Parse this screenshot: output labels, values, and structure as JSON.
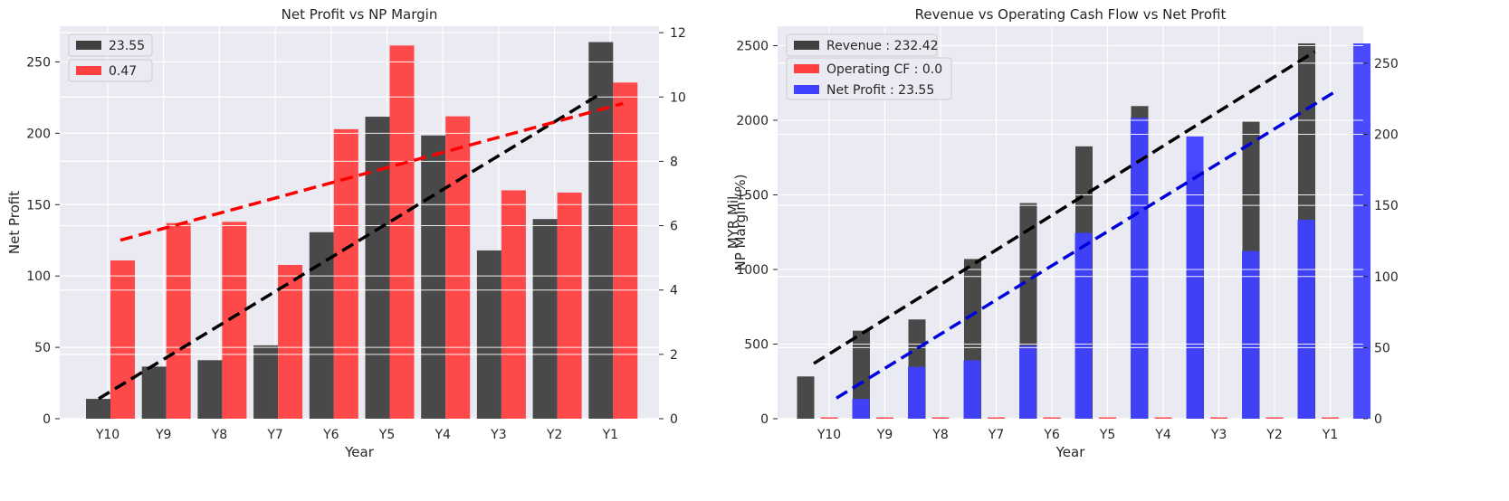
{
  "chart_data": [
    {
      "type": "bar",
      "title": "Net Profit vs NP Margin",
      "xlabel": "Year",
      "ylabel": "Net Profit",
      "y2label": "NP Margin (%)",
      "categories": [
        "Y10",
        "Y9",
        "Y8",
        "Y7",
        "Y6",
        "Y5",
        "Y4",
        "Y3",
        "Y2",
        "Y1"
      ],
      "ylim": [
        0,
        275
      ],
      "yticks": [
        0,
        50,
        100,
        150,
        200,
        250
      ],
      "y2lim": [
        0,
        12.2
      ],
      "y2ticks": [
        0,
        2,
        4,
        6,
        8,
        10,
        12
      ],
      "grid": true,
      "legend_position": "top-left",
      "series": [
        {
          "name": "23.55",
          "axis": "left",
          "color": "#404040",
          "values": [
            13.9,
            36.5,
            41.0,
            51.4,
            130.7,
            211.6,
            198.5,
            117.9,
            139.9,
            263.9
          ]
        },
        {
          "name": "0.47",
          "axis": "right",
          "color": "#ff4040",
          "values": [
            4.92,
            6.08,
            6.12,
            4.78,
            9.0,
            11.6,
            9.4,
            7.1,
            7.03,
            10.45
          ]
        }
      ],
      "trendlines": [
        {
          "series": "23.55",
          "axis": "left",
          "color": "#000000",
          "start": 14,
          "end": 228
        },
        {
          "series": "0.47",
          "axis": "right",
          "color": "#ff0000",
          "start": 5.55,
          "end": 9.8
        }
      ]
    },
    {
      "type": "bar",
      "title": "Revenue vs Operating Cash Flow vs Net Profit",
      "xlabel": "Year",
      "ylabel": "MYR Mil",
      "categories": [
        "Y10",
        "Y9",
        "Y8",
        "Y7",
        "Y6",
        "Y5",
        "Y4",
        "Y3",
        "Y2",
        "Y1"
      ],
      "ylim": [
        0,
        2630
      ],
      "yticks": [
        0,
        500,
        1000,
        1500,
        2000,
        2500
      ],
      "y2lim": [
        0,
        276
      ],
      "y2ticks": [
        0,
        50,
        100,
        150,
        200,
        250
      ],
      "grid": true,
      "legend_position": "top-left",
      "series": [
        {
          "name": "Revenue : 232.42",
          "axis": "left",
          "color": "#404040",
          "values": [
            283,
            590,
            665,
            1070,
            1445,
            1825,
            2095,
            1660,
            1990,
            2515
          ]
        },
        {
          "name": "Operating CF : 0.0",
          "axis": "left",
          "color": "#ff4040",
          "values": [
            0,
            0,
            0,
            0,
            0,
            0,
            0,
            0,
            0,
            0
          ]
        },
        {
          "name": "Net Profit : 23.55",
          "axis": "right",
          "color": "#4040ff",
          "values": [
            13.9,
            36.5,
            41.0,
            51.4,
            130.7,
            211.6,
            198.5,
            117.9,
            139.9,
            263.9
          ]
        }
      ],
      "trendlines": [
        {
          "series": "Revenue : 232.42",
          "axis": "left",
          "color": "#000000",
          "start": 370,
          "end": 2460
        },
        {
          "series": "Net Profit : 23.55",
          "axis": "right",
          "color": "#0000dd",
          "start": 14.5,
          "end": 231
        }
      ]
    }
  ]
}
